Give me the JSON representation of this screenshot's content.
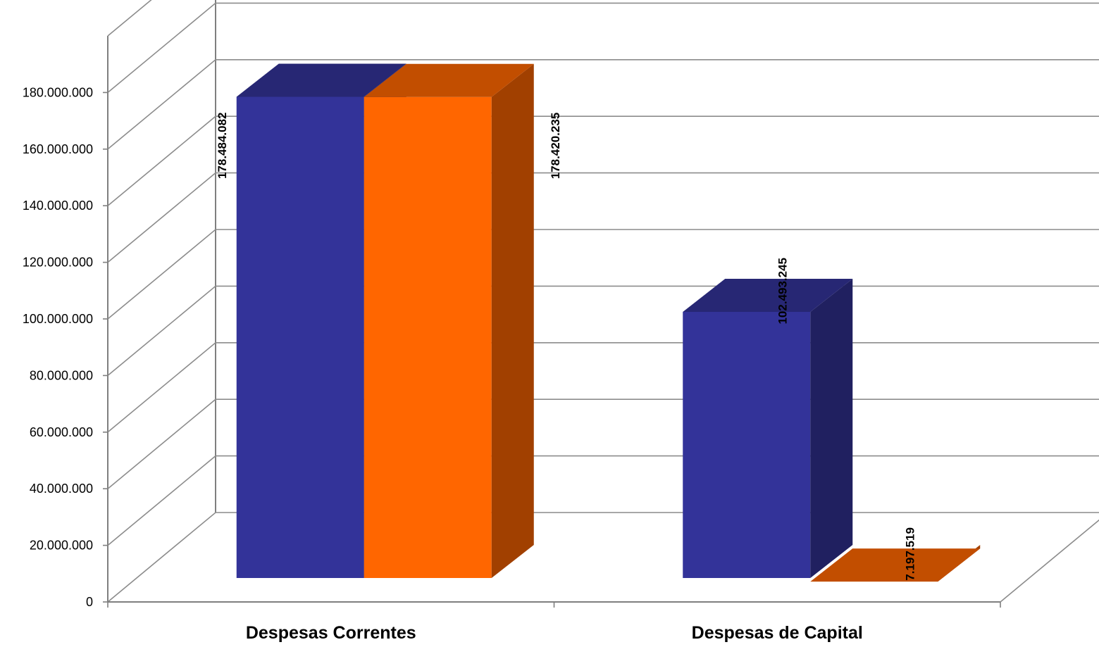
{
  "chart_data": {
    "type": "bar",
    "title": "",
    "xlabel": "",
    "ylabel": "",
    "categories": [
      "Despesas Correntes",
      "Despesas de Capital"
    ],
    "series": [
      {
        "values": [
          178484082,
          102493245
        ],
        "labels": [
          "178.484.082",
          "102.493.245"
        ],
        "color": "#333399"
      },
      {
        "values": [
          178420235,
          7197519
        ],
        "labels": [
          "178.420.235",
          "7.197.519"
        ],
        "color": "#FF6600"
      }
    ],
    "ylim": [
      0,
      200000000
    ],
    "yticks": [
      0,
      20000000,
      40000000,
      60000000,
      80000000,
      100000000,
      120000000,
      140000000,
      160000000,
      180000000
    ],
    "ytick_labels": [
      "0",
      "20.000.000",
      "40.000.000",
      "60.000.000",
      "80.000.000",
      "100.000.000",
      "120.000.000",
      "140.000.000",
      "160.000.000",
      "180.000.000"
    ],
    "grid": true,
    "legend": "none"
  }
}
